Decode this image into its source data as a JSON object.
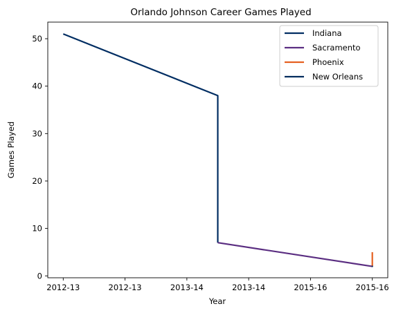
{
  "chart_data": {
    "type": "line",
    "title": "Orlando Johnson Career Games Played",
    "xlabel": "Year",
    "ylabel": "Games Played",
    "xlim": [
      -0.1,
      2.1
    ],
    "ylim": [
      -0.4,
      53.5
    ],
    "x_ticks": [
      {
        "value": 0.0,
        "label": "2012-13"
      },
      {
        "value": 0.4,
        "label": "2012-13"
      },
      {
        "value": 0.8,
        "label": "2013-14"
      },
      {
        "value": 1.2,
        "label": "2013-14"
      },
      {
        "value": 1.6,
        "label": "2015-16"
      },
      {
        "value": 2.0,
        "label": "2015-16"
      }
    ],
    "y_ticks": [
      {
        "value": 0,
        "label": "0"
      },
      {
        "value": 10,
        "label": "10"
      },
      {
        "value": 20,
        "label": "20"
      },
      {
        "value": 30,
        "label": "30"
      },
      {
        "value": 40,
        "label": "40"
      },
      {
        "value": 50,
        "label": "50"
      }
    ],
    "grid": false,
    "legend_position": "top-right",
    "series": [
      {
        "name": "Indiana",
        "color": "#002D62",
        "points": [
          [
            0.0,
            51
          ],
          [
            1.0,
            38
          ],
          [
            1.0,
            7
          ]
        ]
      },
      {
        "name": "Sacramento",
        "color": "#5A2D81",
        "points": [
          [
            1.0,
            7
          ],
          [
            2.0,
            2
          ]
        ]
      },
      {
        "name": "Phoenix",
        "color": "#E56020",
        "points": [
          [
            2.0,
            2
          ],
          [
            2.0,
            5
          ]
        ]
      },
      {
        "name": "New Orleans",
        "color": "#002B5C",
        "points": [
          [
            2.0,
            2
          ]
        ]
      }
    ]
  }
}
